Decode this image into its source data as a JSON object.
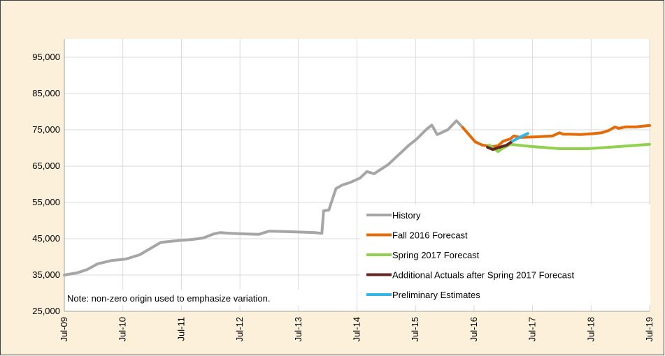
{
  "chart_data": {
    "type": "line",
    "annotation": "Note: non-zero origin used to emphasize variation.",
    "xlim": [
      2009.5,
      2019.5
    ],
    "xticks": [
      {
        "value": 2009.5,
        "label": "Jul-09"
      },
      {
        "value": 2010.5,
        "label": "Jul-10"
      },
      {
        "value": 2011.5,
        "label": "Jul-11"
      },
      {
        "value": 2012.5,
        "label": "Jul-12"
      },
      {
        "value": 2013.5,
        "label": "Jul-13"
      },
      {
        "value": 2014.5,
        "label": "Jul-14"
      },
      {
        "value": 2015.5,
        "label": "Jul-15"
      },
      {
        "value": 2016.5,
        "label": "Jul-16"
      },
      {
        "value": 2017.5,
        "label": "Jul-17"
      },
      {
        "value": 2018.5,
        "label": "Jul-18"
      },
      {
        "value": 2019.5,
        "label": "Jul-19"
      }
    ],
    "ylim": [
      25000,
      100000
    ],
    "yticks": [
      {
        "value": 25000,
        "label": "25,000"
      },
      {
        "value": 35000,
        "label": "35,000"
      },
      {
        "value": 45000,
        "label": "45,000"
      },
      {
        "value": 55000,
        "label": "55,000"
      },
      {
        "value": 65000,
        "label": "65,000"
      },
      {
        "value": 75000,
        "label": "75,000"
      },
      {
        "value": 85000,
        "label": "85,000"
      },
      {
        "value": 95000,
        "label": "95,000"
      }
    ],
    "grid": true,
    "legend": "lower right",
    "series": [
      {
        "name": "History",
        "color": "#a6a6a6",
        "x": [
          2009.5,
          2009.72,
          2009.89,
          2010.07,
          2010.31,
          2010.55,
          2010.79,
          2010.97,
          2011.15,
          2011.39,
          2011.69,
          2011.87,
          2012.05,
          2012.16,
          2012.34,
          2012.64,
          2012.82,
          2013.0,
          2013.42,
          2013.78,
          2013.9,
          2013.93,
          2014.02,
          2014.14,
          2014.25,
          2014.37,
          2014.55,
          2014.67,
          2014.79,
          2015.03,
          2015.21,
          2015.39,
          2015.51,
          2015.69,
          2015.78,
          2015.87,
          2016.05,
          2016.2,
          2016.31
        ],
        "values": [
          35000,
          35600,
          36500,
          38100,
          39000,
          39400,
          40600,
          42300,
          44000,
          44400,
          44800,
          45200,
          46300,
          46700,
          46500,
          46300,
          46200,
          47100,
          46900,
          46700,
          46500,
          52700,
          52900,
          58800,
          59800,
          60400,
          61700,
          63500,
          62900,
          65400,
          68100,
          70800,
          72300,
          75200,
          76300,
          73700,
          75000,
          77500,
          75600
        ]
      },
      {
        "name": "Fall 2016 Forecast",
        "color": "#e36c0a",
        "x": [
          2016.31,
          2016.52,
          2016.64,
          2016.82,
          2016.91,
          2017.0,
          2017.12,
          2017.18,
          2017.3,
          2017.6,
          2017.84,
          2017.96,
          2018.02,
          2018.14,
          2018.32,
          2018.56,
          2018.68,
          2018.8,
          2018.91,
          2018.97,
          2019.09,
          2019.27,
          2019.5
        ],
        "values": [
          75600,
          71700,
          70800,
          70400,
          70600,
          71900,
          72500,
          73300,
          72900,
          73100,
          73300,
          74200,
          73800,
          73800,
          73700,
          74000,
          74200,
          74800,
          75800,
          75400,
          75800,
          75800,
          76200
        ]
      },
      {
        "name": "Spring 2017 Forecast",
        "color": "#92d050",
        "x": [
          2016.76,
          2016.91,
          2016.98,
          2017.12,
          2017.48,
          2017.96,
          2018.44,
          2018.8,
          2019.15,
          2019.5
        ],
        "values": [
          70800,
          69000,
          69800,
          71000,
          70400,
          69800,
          69800,
          70200,
          70600,
          71000
        ]
      },
      {
        "name": "Additional Actuals after Spring 2017 Forecast",
        "color": "#632523",
        "x": [
          2016.73,
          2016.82,
          2016.94,
          2017.06,
          2017.16
        ],
        "values": [
          70200,
          69600,
          70200,
          70800,
          71900
        ]
      },
      {
        "name": "Preliminary Estimates",
        "color": "#31b6e8",
        "x": [
          2017.16,
          2017.3,
          2017.42
        ],
        "values": [
          71900,
          73100,
          74000
        ]
      }
    ]
  }
}
